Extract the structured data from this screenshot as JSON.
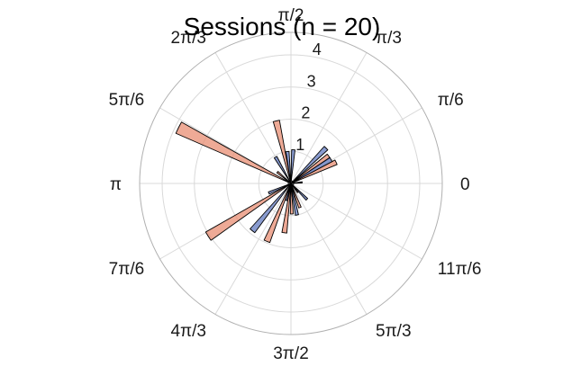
{
  "chart_data": {
    "type": "polar-histogram",
    "title": "Sessions (n = 20)",
    "theta_tick_labels": [
      "0",
      "π/6",
      "π/3",
      "π/2",
      "2π/3",
      "5π/6",
      "π",
      "7π/6",
      "4π/3",
      "3π/2",
      "5π/3",
      "11π/6"
    ],
    "r_tick_labels": [
      "1",
      "2",
      "3",
      "4"
    ],
    "rlim": [
      0,
      4.7
    ],
    "grid": true,
    "colors": {
      "grid": "#d9d9d9",
      "outer_circle": "#b0b0b0",
      "bar_edge": "#000000"
    },
    "series": [
      {
        "color": "#e8896e",
        "bars": [
          {
            "theta": 0.44,
            "width": 0.1,
            "value": 1.55
          },
          {
            "theta": 0.63,
            "width": 0.1,
            "value": 1.45
          },
          {
            "theta": 1.8,
            "width": 0.1,
            "value": 2.0
          },
          {
            "theta": 2.44,
            "width": 0.1,
            "value": 0.55
          },
          {
            "theta": 2.68,
            "width": 0.1,
            "value": 3.9
          },
          {
            "theta": 3.71,
            "width": 0.1,
            "value": 3.05
          },
          {
            "theta": 4.32,
            "width": 0.1,
            "value": 1.95
          },
          {
            "theta": 4.58,
            "width": 0.1,
            "value": 1.55
          },
          {
            "theta": 4.74,
            "width": 0.1,
            "value": 0.95
          },
          {
            "theta": 5.07,
            "width": 0.1,
            "value": 0.8
          },
          {
            "theta": 5.37,
            "width": 0.1,
            "value": 0.35
          }
        ]
      },
      {
        "color": "#5b74bc",
        "bars": [
          {
            "theta": 0.1,
            "width": 0.1,
            "value": 0.35
          },
          {
            "theta": 0.54,
            "width": 0.1,
            "value": 1.45
          },
          {
            "theta": 0.79,
            "width": 0.1,
            "value": 1.55
          },
          {
            "theta": 1.5,
            "width": 0.1,
            "value": 1.05
          },
          {
            "theta": 1.68,
            "width": 0.1,
            "value": 1.0
          },
          {
            "theta": 2.1,
            "width": 0.1,
            "value": 0.95
          },
          {
            "theta": 3.55,
            "width": 0.1,
            "value": 0.75
          },
          {
            "theta": 4.03,
            "width": 0.1,
            "value": 1.9
          },
          {
            "theta": 4.43,
            "width": 0.1,
            "value": 0.55
          },
          {
            "theta": 4.9,
            "width": 0.1,
            "value": 1.0
          },
          {
            "theta": 5.5,
            "width": 0.1,
            "value": 0.7
          }
        ]
      }
    ]
  }
}
